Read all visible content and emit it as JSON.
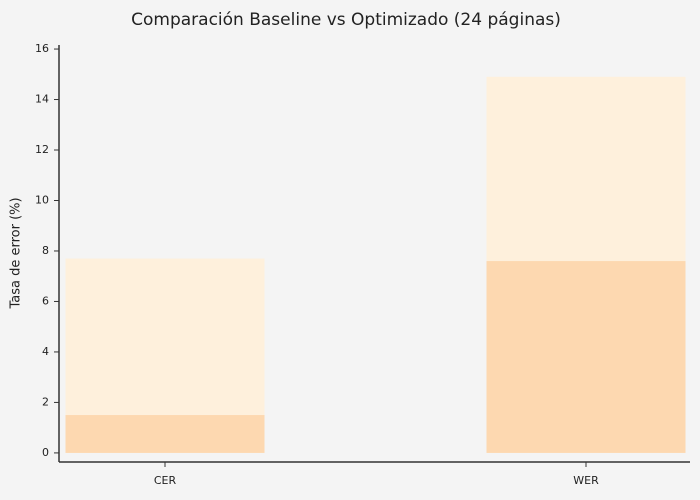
{
  "chart_data": {
    "type": "bar",
    "title": "Comparación Baseline vs Optimizado (24 páginas)",
    "y_label": "Tasa de error (%)",
    "categories": [
      "CER",
      "WER"
    ],
    "series": [
      {
        "color": "#fef0dc",
        "values": [
          7.7,
          14.9
        ]
      },
      {
        "color": "#fdd8b0",
        "values": [
          1.5,
          7.6
        ]
      }
    ],
    "ylim": [
      -0.36,
      16.16
    ],
    "yticks": [
      0,
      2,
      4,
      6,
      8,
      10,
      12,
      14,
      16
    ]
  }
}
